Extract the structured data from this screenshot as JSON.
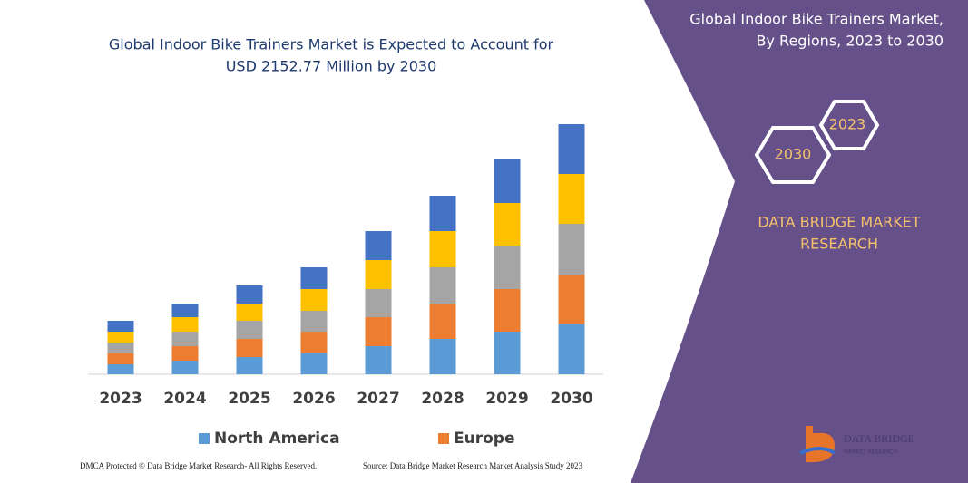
{
  "chart_data": {
    "type": "bar",
    "stacked": true,
    "title": [
      "Global Indoor Bike Trainers Market is Expected to Account for",
      "USD 2152.77 Million by 2030"
    ],
    "categories": [
      "2023",
      "2024",
      "2025",
      "2026",
      "2027",
      "2028",
      "2029",
      "2030"
    ],
    "series": [
      {
        "name": "North America",
        "color": "#5b9bd5",
        "values": [
          11,
          15,
          19,
          23,
          31,
          39,
          47,
          55
        ]
      },
      {
        "name": "Europe",
        "color": "#ed7d31",
        "values": [
          12,
          16,
          20,
          24,
          32,
          39,
          47,
          55
        ]
      },
      {
        "color": "#a5a5a5",
        "values": [
          12,
          16,
          20,
          23,
          31,
          40,
          48,
          56
        ]
      },
      {
        "color": "#ffc000",
        "values": [
          12,
          16,
          19,
          24,
          32,
          40,
          47,
          55
        ]
      },
      {
        "color": "#4472c4",
        "values": [
          12,
          15,
          20,
          24,
          32,
          39,
          48,
          55
        ]
      }
    ]
  },
  "panel": {
    "title": [
      "Global Indoor Bike Trainers Market,",
      "By Regions, 2023 to 2030"
    ],
    "hexagons": [
      "2023",
      "2030"
    ],
    "brand": [
      "DATA BRIDGE MARKET",
      "RESEARCH"
    ],
    "logo": [
      "DATA BRIDGE",
      "MARKET RESEARCH"
    ]
  },
  "footer": {
    "left": "DMCA Protected © Data Bridge Market Research- All Rights Reserved.",
    "right": "Source: Data Bridge Market Research Market Analysis Study 2023"
  }
}
